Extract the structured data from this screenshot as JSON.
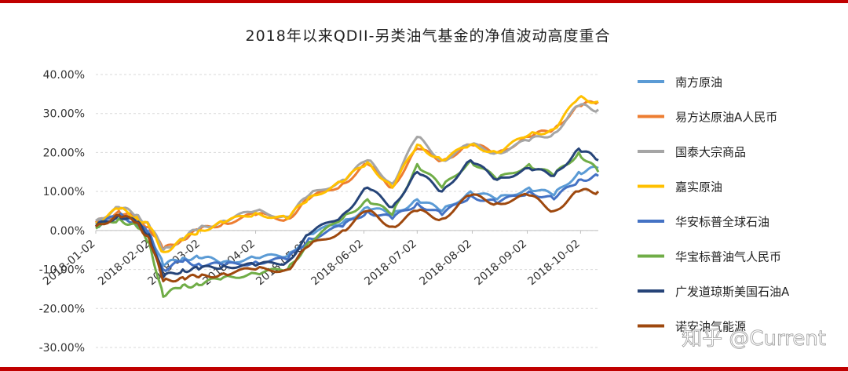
{
  "colors": {
    "frame": "#c00000",
    "axis": "#bfbfbf",
    "grid": "#d9d9d9"
  },
  "watermark": "知乎 @Current",
  "chart_data": {
    "type": "line",
    "title": "2018年以来QDII-另类油气基金的净值波动高度重合",
    "y_tick_labels": [
      "40.00%",
      "30.00%",
      "20.00%",
      "10.00%",
      "0.00%",
      "-10.00%",
      "-20.00%",
      "-30.00%"
    ],
    "ylim": [
      -30,
      40
    ],
    "x_tick_labels": [
      "2018-01-02",
      "2018-02-02",
      "2018-03-02",
      "2018-04-02",
      "2018-05-02",
      "2018-06-02",
      "2018-07-02",
      "2018-08-02",
      "2018-09-02",
      "2018-10-02"
    ],
    "x_range": [
      "2018-01-02",
      "2018-10-12"
    ],
    "legend_position": "right",
    "grid": "horizontal",
    "series": [
      {
        "name": "南方原油",
        "color": "#5b9bd5",
        "dates": [
          "2018-01-02",
          "2018-01-15",
          "2018-01-25",
          "2018-02-01",
          "2018-02-09",
          "2018-02-20",
          "2018-03-01",
          "2018-03-15",
          "2018-04-02",
          "2018-04-20",
          "2018-05-02",
          "2018-05-21",
          "2018-06-04",
          "2018-06-18",
          "2018-07-02",
          "2018-07-16",
          "2018-08-01",
          "2018-08-16",
          "2018-09-03",
          "2018-09-17",
          "2018-10-01",
          "2018-10-12"
        ],
        "values": [
          1.5,
          4,
          2.5,
          0,
          -9,
          -7,
          -7,
          -8,
          -7,
          -6.5,
          -1,
          2,
          6,
          4,
          8,
          5,
          10,
          8,
          11,
          9,
          15,
          16
        ]
      },
      {
        "name": "易方达原油A人民币",
        "color": "#ed7d31",
        "dates": [
          "2018-01-02",
          "2018-01-15",
          "2018-01-25",
          "2018-02-01",
          "2018-02-09",
          "2018-02-20",
          "2018-03-01",
          "2018-03-15",
          "2018-04-02",
          "2018-04-20",
          "2018-05-02",
          "2018-05-21",
          "2018-06-04",
          "2018-06-18",
          "2018-07-02",
          "2018-07-16",
          "2018-08-01",
          "2018-08-16",
          "2018-09-03",
          "2018-09-17",
          "2018-10-01",
          "2018-10-12"
        ],
        "values": [
          2,
          5,
          3,
          1,
          -5,
          -2,
          0,
          2,
          4,
          3,
          8,
          12,
          17,
          11,
          21,
          18,
          22,
          20,
          24,
          26,
          32,
          33
        ]
      },
      {
        "name": "国泰大宗商品",
        "color": "#a5a5a5",
        "dates": [
          "2018-01-02",
          "2018-01-15",
          "2018-01-25",
          "2018-02-01",
          "2018-02-09",
          "2018-02-20",
          "2018-03-01",
          "2018-03-15",
          "2018-04-02",
          "2018-04-20",
          "2018-05-02",
          "2018-05-21",
          "2018-06-04",
          "2018-06-18",
          "2018-07-02",
          "2018-07-16",
          "2018-08-01",
          "2018-08-16",
          "2018-09-03",
          "2018-09-17",
          "2018-10-01",
          "2018-10-12"
        ],
        "values": [
          2.5,
          6,
          4,
          1.5,
          -5,
          -2,
          0.5,
          2.5,
          5,
          3.5,
          9,
          13,
          18,
          12,
          24,
          18,
          22,
          20,
          23,
          25,
          32,
          31
        ]
      },
      {
        "name": "嘉实原油",
        "color": "#ffc000",
        "dates": [
          "2018-01-02",
          "2018-01-15",
          "2018-01-25",
          "2018-02-01",
          "2018-02-09",
          "2018-02-20",
          "2018-03-01",
          "2018-03-15",
          "2018-04-02",
          "2018-04-20",
          "2018-05-02",
          "2018-05-21",
          "2018-06-04",
          "2018-06-18",
          "2018-07-02",
          "2018-07-16",
          "2018-08-01",
          "2018-08-16",
          "2018-09-03",
          "2018-09-17",
          "2018-10-01",
          "2018-10-12"
        ],
        "values": [
          2,
          5.5,
          3.5,
          1,
          -5.5,
          -2.5,
          0,
          2,
          4.5,
          3,
          8.5,
          12.5,
          17.5,
          11,
          22,
          18,
          22,
          20,
          24.5,
          26,
          34,
          33
        ]
      },
      {
        "name": "华安标普全球石油",
        "color": "#4472c4",
        "dates": [
          "2018-01-02",
          "2018-01-15",
          "2018-01-25",
          "2018-02-01",
          "2018-02-09",
          "2018-02-20",
          "2018-03-01",
          "2018-03-15",
          "2018-04-02",
          "2018-04-20",
          "2018-05-02",
          "2018-05-21",
          "2018-06-04",
          "2018-06-18",
          "2018-07-02",
          "2018-07-16",
          "2018-08-01",
          "2018-08-16",
          "2018-09-03",
          "2018-09-17",
          "2018-10-01",
          "2018-10-12"
        ],
        "values": [
          1,
          4,
          2,
          -1,
          -10,
          -8,
          -8.5,
          -9,
          -8,
          -7.5,
          -2,
          1,
          5,
          3,
          7,
          4,
          9,
          7,
          10,
          8,
          13,
          14
        ]
      },
      {
        "name": "华宝标普油气人民币",
        "color": "#70ad47",
        "dates": [
          "2018-01-02",
          "2018-01-15",
          "2018-01-25",
          "2018-02-01",
          "2018-02-09",
          "2018-02-20",
          "2018-03-01",
          "2018-03-15",
          "2018-04-02",
          "2018-04-20",
          "2018-05-02",
          "2018-05-21",
          "2018-06-04",
          "2018-06-18",
          "2018-07-02",
          "2018-07-16",
          "2018-08-01",
          "2018-08-16",
          "2018-09-03",
          "2018-09-17",
          "2018-10-01",
          "2018-10-12"
        ],
        "values": [
          0.5,
          3,
          1,
          -3,
          -17,
          -14,
          -14,
          -12,
          -11,
          -10,
          -3,
          3,
          8,
          4,
          17,
          11,
          18,
          13,
          17,
          14,
          20,
          15
        ]
      },
      {
        "name": "广发道琼斯美国石油A",
        "color": "#264478",
        "dates": [
          "2018-01-02",
          "2018-01-15",
          "2018-01-25",
          "2018-02-01",
          "2018-02-09",
          "2018-02-20",
          "2018-03-01",
          "2018-03-15",
          "2018-04-02",
          "2018-04-20",
          "2018-05-02",
          "2018-05-21",
          "2018-06-04",
          "2018-06-18",
          "2018-07-02",
          "2018-07-16",
          "2018-08-01",
          "2018-08-16",
          "2018-09-03",
          "2018-09-17",
          "2018-10-01",
          "2018-10-12"
        ],
        "values": [
          1,
          4,
          2,
          -1,
          -12,
          -10,
          -10,
          -9,
          -9,
          -8,
          -1,
          4,
          11,
          6,
          15,
          10,
          18,
          13,
          16,
          14,
          21,
          18
        ]
      },
      {
        "name": "诺安油气能源",
        "color": "#9e480e",
        "dates": [
          "2018-01-02",
          "2018-01-15",
          "2018-01-25",
          "2018-02-01",
          "2018-02-09",
          "2018-02-20",
          "2018-03-01",
          "2018-03-15",
          "2018-04-02",
          "2018-04-20",
          "2018-05-02",
          "2018-05-21",
          "2018-06-04",
          "2018-06-18",
          "2018-07-02",
          "2018-07-16",
          "2018-08-01",
          "2018-08-16",
          "2018-09-03",
          "2018-09-17",
          "2018-10-01",
          "2018-10-12"
        ],
        "values": [
          1,
          4,
          2,
          -2,
          -13,
          -12,
          -12,
          -11,
          -10,
          -10,
          -4,
          0,
          5,
          1,
          5,
          3,
          9,
          7,
          9,
          5,
          10,
          10
        ]
      }
    ]
  }
}
